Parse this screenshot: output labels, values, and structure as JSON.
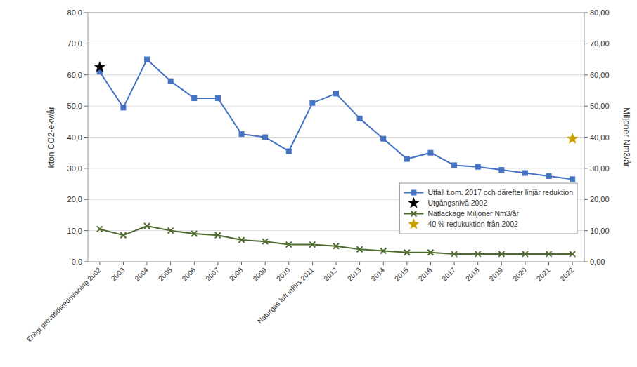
{
  "chart_data": {
    "type": "line",
    "categories": [
      "Enligt prövotidsredovisning 2002",
      "2003",
      "2004",
      "2005",
      "2006",
      "2007",
      "2008",
      "2009",
      "2010",
      "Naturgas luft införs 2011",
      "2012",
      "2013",
      "2014",
      "2015",
      "2016",
      "2017",
      "2018",
      "2019",
      "2020",
      "2021",
      "2022"
    ],
    "series": [
      {
        "name": "Utfall t.om. 2017 och därefter linjär reduktion",
        "color": "#4472C4",
        "marker": "square",
        "line_style": "solid",
        "values": [
          61.0,
          49.5,
          65.0,
          58.0,
          52.5,
          52.5,
          41.0,
          40.0,
          35.5,
          51.0,
          54.0,
          46.0,
          39.5,
          33.0,
          35.0,
          31.0,
          30.5,
          29.5,
          28.5,
          27.5,
          26.5
        ]
      },
      {
        "name": "Utgångsnivå 2002",
        "color": "#000000",
        "marker": "star",
        "line_style": "none",
        "values": [
          62.5,
          null,
          null,
          null,
          null,
          null,
          null,
          null,
          null,
          null,
          null,
          null,
          null,
          null,
          null,
          null,
          null,
          null,
          null,
          null,
          null
        ]
      },
      {
        "name": "Nätläckage Miljoner Nm3/år",
        "color": "#4E6B2F",
        "marker": "x",
        "line_style": "solid",
        "values": [
          10.5,
          8.5,
          11.5,
          10.0,
          9.0,
          8.5,
          7.0,
          6.5,
          5.5,
          5.5,
          5.0,
          4.0,
          3.5,
          3.0,
          3.0,
          2.5,
          2.5,
          2.5,
          2.5,
          2.5,
          2.5
        ]
      },
      {
        "name": "40 % redukuktion från 2002",
        "color": "#C8A000",
        "marker": "star",
        "line_style": "none",
        "values": [
          null,
          null,
          null,
          null,
          null,
          null,
          null,
          null,
          null,
          null,
          null,
          null,
          null,
          null,
          null,
          null,
          null,
          null,
          null,
          null,
          39.5
        ]
      }
    ],
    "ylabel": "kton CO2-ekv/år",
    "y2label": "Miljoner Nm3/år",
    "ylim": [
      0,
      80
    ],
    "yticks": [
      {
        "value": 0,
        "label": "0,0"
      },
      {
        "value": 10,
        "label": "10,0"
      },
      {
        "value": 20,
        "label": "20,0"
      },
      {
        "value": 30,
        "label": "30,0"
      },
      {
        "value": 40,
        "label": "40,0"
      },
      {
        "value": 50,
        "label": "50,0"
      },
      {
        "value": 60,
        "label": "60,0"
      },
      {
        "value": 70,
        "label": "70,0"
      },
      {
        "value": 80,
        "label": "80,0"
      }
    ],
    "y2lim": [
      0,
      80
    ],
    "y2ticks": [
      {
        "value": 0,
        "label": "0,00"
      },
      {
        "value": 10,
        "label": "10,00"
      },
      {
        "value": 20,
        "label": "20,00"
      },
      {
        "value": 30,
        "label": "30,00"
      },
      {
        "value": 40,
        "label": "40,00"
      },
      {
        "value": 50,
        "label": "50,00"
      },
      {
        "value": 60,
        "label": "60,00"
      },
      {
        "value": 70,
        "label": "70,00"
      },
      {
        "value": 80,
        "label": "80,00"
      }
    ],
    "grid": true,
    "legend": "lower right"
  }
}
